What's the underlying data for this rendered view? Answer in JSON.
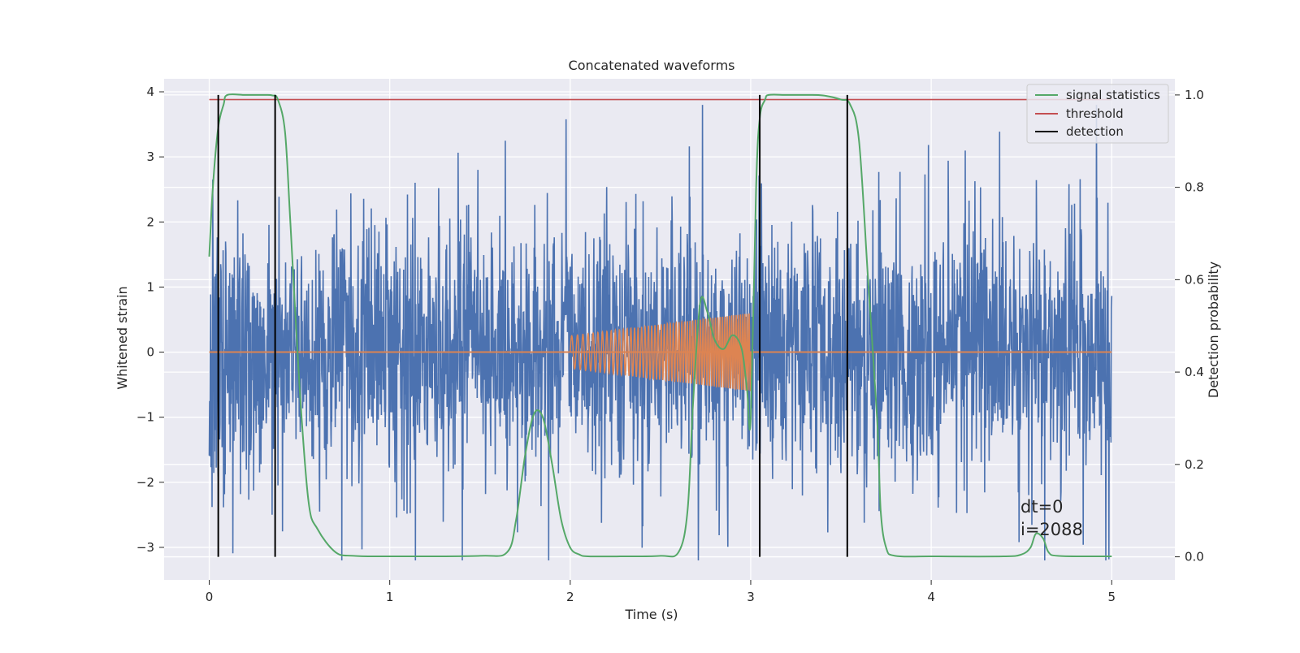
{
  "chart_data": {
    "type": "line",
    "title": "Concatenated waveforms",
    "xlabel": "Time (s)",
    "ylabel_left": "Whitened strain",
    "ylabel_right": "Detection probability",
    "xlim": [
      -0.25,
      5.35
    ],
    "ylim_left": [
      -3.5,
      4.2
    ],
    "ylim_right": [
      -0.05,
      1.035
    ],
    "x_ticks": [
      0,
      1,
      2,
      3,
      4,
      5
    ],
    "x_tick_labels": [
      "0",
      "1",
      "2",
      "3",
      "4",
      "5"
    ],
    "y_left_ticks": [
      -3,
      -2,
      -1,
      0,
      1,
      2,
      3,
      4
    ],
    "y_left_tick_labels": [
      "−3",
      "−2",
      "−1",
      "0",
      "1",
      "2",
      "3",
      "4"
    ],
    "y_right_ticks": [
      0.0,
      0.2,
      0.4,
      0.6,
      0.8,
      1.0
    ],
    "y_right_tick_labels": [
      "0.0",
      "0.2",
      "0.4",
      "0.6",
      "0.8",
      "1.0"
    ],
    "grid": true,
    "legend_position": "top-right",
    "legend": [
      {
        "label": "signal statistics",
        "color": "#55a868"
      },
      {
        "label": "threshold",
        "color": "#c44e52"
      },
      {
        "label": "detection",
        "color": "#000000"
      }
    ],
    "annotation_lines": [
      "dt=0",
      "i=2088"
    ],
    "series": [
      {
        "role": "whitened-strain-noise",
        "axis": "left",
        "color": "#4c72b0",
        "x_range": [
          0,
          5
        ],
        "envelope_approx": [
          -3.2,
          3.8
        ]
      },
      {
        "role": "injected-waveform",
        "axis": "left",
        "color": "#dd8452",
        "baseline": 0,
        "chirp_x_range": [
          2.0,
          3.0
        ],
        "amplitude_start": 0.25,
        "amplitude_end": 0.6
      },
      {
        "name": "signal statistics",
        "axis": "right",
        "color": "#55a868",
        "x": [
          0.0,
          0.02,
          0.05,
          0.08,
          0.1,
          0.2,
          0.3,
          0.35,
          0.38,
          0.42,
          0.45,
          0.5,
          0.55,
          0.6,
          0.7,
          0.8,
          1.0,
          1.5,
          1.65,
          1.7,
          1.75,
          1.8,
          1.85,
          1.9,
          1.95,
          2.0,
          2.05,
          2.1,
          2.3,
          2.5,
          2.6,
          2.65,
          2.68,
          2.72,
          2.76,
          2.8,
          2.85,
          2.9,
          2.95,
          2.98,
          3.0,
          3.03,
          3.05,
          3.08,
          3.1,
          3.2,
          3.3,
          3.4,
          3.5,
          3.55,
          3.6,
          3.65,
          3.7,
          3.72,
          3.75,
          3.8,
          4.0,
          4.4,
          4.5,
          4.55,
          4.58,
          4.62,
          4.65,
          4.7,
          4.9,
          5.0
        ],
        "y": [
          0.65,
          0.8,
          0.93,
          0.98,
          1.0,
          1.0,
          1.0,
          0.999,
          0.99,
          0.92,
          0.72,
          0.37,
          0.12,
          0.06,
          0.01,
          0.002,
          0.001,
          0.002,
          0.01,
          0.08,
          0.22,
          0.31,
          0.3,
          0.2,
          0.08,
          0.02,
          0.005,
          0.001,
          0.001,
          0.002,
          0.01,
          0.1,
          0.33,
          0.55,
          0.53,
          0.47,
          0.45,
          0.48,
          0.45,
          0.36,
          0.3,
          0.8,
          0.95,
          0.99,
          1.0,
          1.0,
          1.0,
          0.999,
          0.99,
          0.98,
          0.9,
          0.6,
          0.3,
          0.1,
          0.02,
          0.002,
          0.001,
          0.001,
          0.005,
          0.02,
          0.05,
          0.04,
          0.01,
          0.002,
          0.001,
          0.001
        ]
      },
      {
        "name": "threshold",
        "axis": "right",
        "color": "#c44e52",
        "x": [
          0,
          5
        ],
        "y": [
          0.99,
          0.99
        ]
      },
      {
        "name": "detection",
        "axis": "right",
        "color": "#000000",
        "vertical_lines_x": [
          0.05,
          0.365,
          3.05,
          3.535
        ],
        "y_span": [
          0.0,
          1.0
        ]
      }
    ]
  }
}
